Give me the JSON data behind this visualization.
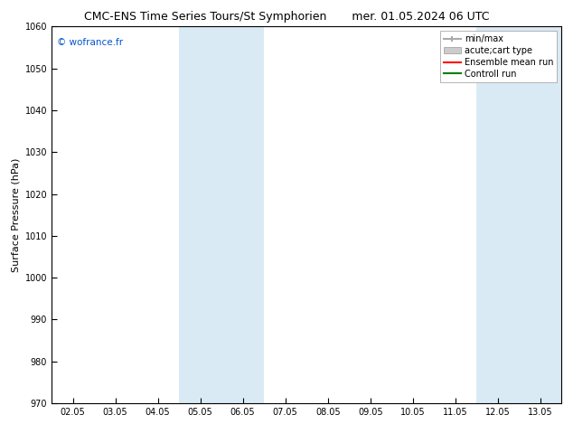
{
  "title_left": "CMC-ENS Time Series Tours/St Symphorien",
  "title_right": "mer. 01.05.2024 06 UTC",
  "ylabel": "Surface Pressure (hPa)",
  "watermark": "© wofrance.fr",
  "watermark_color": "#0055cc",
  "ylim": [
    970,
    1060
  ],
  "yticks": [
    970,
    980,
    990,
    1000,
    1010,
    1020,
    1030,
    1040,
    1050,
    1060
  ],
  "xtick_labels": [
    "02.05",
    "03.05",
    "04.05",
    "05.05",
    "06.05",
    "07.05",
    "08.05",
    "09.05",
    "10.05",
    "11.05",
    "12.05",
    "13.05"
  ],
  "xtick_positions": [
    0,
    1,
    2,
    3,
    4,
    5,
    6,
    7,
    8,
    9,
    10,
    11
  ],
  "xlim": [
    -0.5,
    11.5
  ],
  "shaded_bands": [
    {
      "x_start": 2.5,
      "x_end": 3.5,
      "color": "#daeaf5"
    },
    {
      "x_start": 3.5,
      "x_end": 4.5,
      "color": "#daeaf5"
    },
    {
      "x_start": 9.5,
      "x_end": 10.5,
      "color": "#daeaf5"
    },
    {
      "x_start": 10.5,
      "x_end": 11.5,
      "color": "#daeaf5"
    }
  ],
  "legend_entries": [
    {
      "label": "min/max",
      "color": "#aaaaaa",
      "lw": 1.5
    },
    {
      "label": "acute;cart type",
      "color": "#cccccc",
      "lw": 6
    },
    {
      "label": "Ensemble mean run",
      "color": "#ff0000",
      "lw": 1.5
    },
    {
      "label": "Controll run",
      "color": "#008000",
      "lw": 1.5
    }
  ],
  "background_color": "#ffffff",
  "title_fontsize": 9,
  "tick_fontsize": 7,
  "ylabel_fontsize": 8,
  "legend_fontsize": 7
}
